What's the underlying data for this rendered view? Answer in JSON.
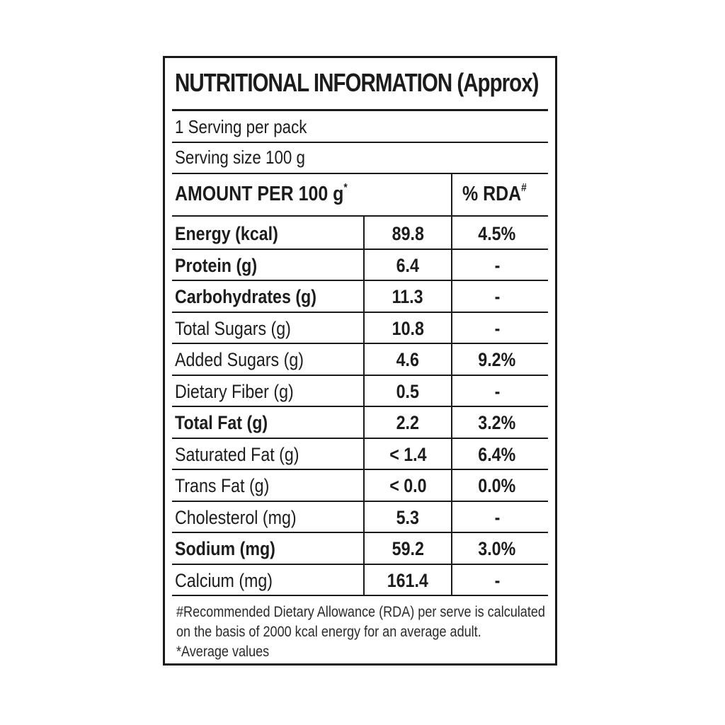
{
  "label": {
    "title": "NUTRITIONAL INFORMATION (Approx)",
    "servings_per_pack": "1 Serving per pack",
    "serving_size": "Serving size 100 g",
    "amount_header": "AMOUNT PER 100 g",
    "amount_header_mark": "*",
    "rda_header": "% RDA",
    "rda_header_mark": "#",
    "rows": [
      {
        "name": "Energy (kcal)",
        "value": "89.8",
        "rda": "4.5%",
        "bold": true
      },
      {
        "name": "Protein (g)",
        "value": "6.4",
        "rda": "-",
        "bold": true
      },
      {
        "name": "Carbohydrates (g)",
        "value": "11.3",
        "rda": "-",
        "bold": true
      },
      {
        "name": "Total Sugars (g)",
        "value": "10.8",
        "rda": "-",
        "bold": false
      },
      {
        "name": "Added Sugars (g)",
        "value": "4.6",
        "rda": "9.2%",
        "bold": false
      },
      {
        "name": "Dietary Fiber (g)",
        "value": "0.5",
        "rda": "-",
        "bold": false
      },
      {
        "name": "Total Fat (g)",
        "value": "2.2",
        "rda": "3.2%",
        "bold": true
      },
      {
        "name": "Saturated Fat (g)",
        "value": "< 1.4",
        "rda": "6.4%",
        "bold": false
      },
      {
        "name": "Trans Fat (g)",
        "value": "< 0.0",
        "rda": "0.0%",
        "bold": false
      },
      {
        "name": "Cholesterol (mg)",
        "value": "5.3",
        "rda": "-",
        "bold": false
      },
      {
        "name": "Sodium (mg)",
        "value": "59.2",
        "rda": "3.0%",
        "bold": true
      },
      {
        "name": "Calcium (mg)",
        "value": "161.4",
        "rda": "-",
        "bold": false
      }
    ],
    "footnote_rda_line1": "#Recommended Dietary Allowance (RDA) per serve is calculated",
    "footnote_rda_line2": "on the basis of 2000 kcal energy for an average adult.",
    "footnote_average": "*Average values"
  }
}
